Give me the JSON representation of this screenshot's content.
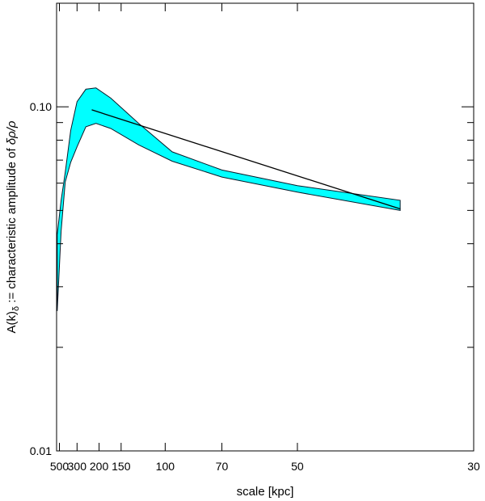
{
  "chart_data": {
    "type": "area",
    "title": "",
    "xlabel": "scale [kpc]",
    "ylabel": "A(k)₀ := characteristic amplitude of δρ/ρ",
    "ylabel_parts": {
      "pre": "A(k)",
      "sub": "δ",
      "post": " := characteristic amplitude of ",
      "italic": "δρ/ρ"
    },
    "x_scale": "reciprocal",
    "y_scale": "log",
    "xlim": [
      560,
      30
    ],
    "ylim": [
      0.01,
      0.2
    ],
    "x_tick_labels": [
      {
        "value": 500,
        "label": "500"
      },
      {
        "value": 300,
        "label": "300"
      },
      {
        "value": 200,
        "label": "200"
      },
      {
        "value": 150,
        "label": "150"
      },
      {
        "value": 100,
        "label": "100"
      },
      {
        "value": 70,
        "label": "70"
      },
      {
        "value": 50,
        "label": "50"
      },
      {
        "value": 30,
        "label": "30"
      }
    ],
    "y_tick_labels": [
      {
        "value": 0.01,
        "label": "0.01"
      },
      {
        "value": 0.1,
        "label": "0.10"
      }
    ],
    "y_minor_ticks": [
      0.02,
      0.03,
      0.04,
      0.05,
      0.06,
      0.07,
      0.08,
      0.09,
      0.2
    ],
    "band_color": "#00ffff",
    "band": {
      "upper": [
        {
          "x": 545,
          "y": 0.0425
        },
        {
          "x": 470,
          "y": 0.0535
        },
        {
          "x": 410,
          "y": 0.0645
        },
        {
          "x": 350,
          "y": 0.0855
        },
        {
          "x": 300,
          "y": 0.1035
        },
        {
          "x": 250,
          "y": 0.1125
        },
        {
          "x": 210,
          "y": 0.1135
        },
        {
          "x": 170,
          "y": 0.106
        },
        {
          "x": 125,
          "y": 0.0895
        },
        {
          "x": 95,
          "y": 0.074
        },
        {
          "x": 70,
          "y": 0.0655
        },
        {
          "x": 50,
          "y": 0.059
        },
        {
          "x": 36,
          "y": 0.0535
        }
      ],
      "lower": [
        {
          "x": 545,
          "y": 0.0255
        },
        {
          "x": 470,
          "y": 0.0435
        },
        {
          "x": 410,
          "y": 0.0605
        },
        {
          "x": 350,
          "y": 0.069
        },
        {
          "x": 300,
          "y": 0.0765
        },
        {
          "x": 250,
          "y": 0.0875
        },
        {
          "x": 210,
          "y": 0.0895
        },
        {
          "x": 170,
          "y": 0.0865
        },
        {
          "x": 125,
          "y": 0.0775
        },
        {
          "x": 95,
          "y": 0.0695
        },
        {
          "x": 70,
          "y": 0.0625
        },
        {
          "x": 50,
          "y": 0.0565
        },
        {
          "x": 36,
          "y": 0.05
        }
      ]
    },
    "fit_line": [
      {
        "x": 225,
        "y": 0.098
      },
      {
        "x": 36,
        "y": 0.0505
      }
    ]
  }
}
